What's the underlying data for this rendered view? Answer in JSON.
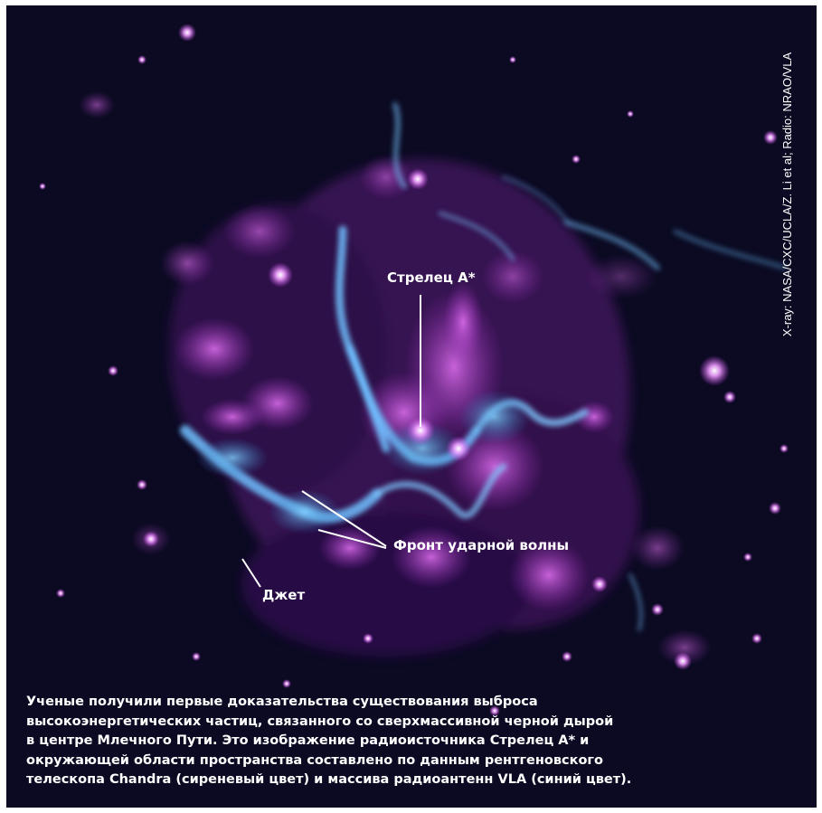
{
  "labels": {
    "sgr_a": "Стрелец А*",
    "shock_front": "Фронт ударной волны",
    "jet": "Джет"
  },
  "credit": "X-ray: NASA/CXC/UCLA/Z. Li et al; Radio: NRAO/VLA",
  "caption_lines": [
    "Ученые получили первые доказательства существования выброса",
    "высокоэнергетических частиц, связанного со сверхмассивной черной дырой",
    "в центре Млечного Пути. Это изображение радиоисточника Стрелец А* и",
    "окружающей области пространства составлено по данным рентгеновского",
    "телескопа Chandra (сиреневый цвет) и массива радиоантенн VLA (синий цвет)."
  ],
  "colors": {
    "background": "#0b0a22",
    "xray_magenta": "#d060e0",
    "radio_blue": "#60b8ff",
    "text": "#ffffff"
  }
}
